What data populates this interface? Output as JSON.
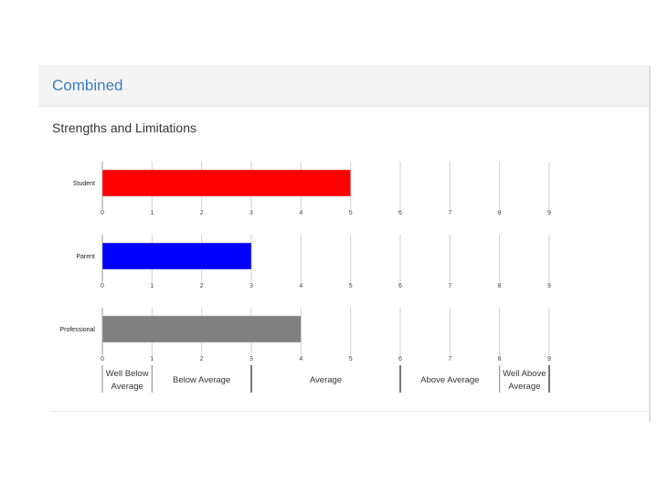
{
  "header": {
    "title": "Combined"
  },
  "section": {
    "title": "Strengths and Limitations"
  },
  "chart_data": {
    "type": "bar",
    "orientation": "horizontal",
    "categories": [
      "Student",
      "Parent",
      "Professional"
    ],
    "values": [
      5,
      3,
      4
    ],
    "colors": [
      "#ff0000",
      "#0000ff",
      "#808080"
    ],
    "xlim": [
      0,
      9
    ],
    "xticks": [
      "0",
      "1",
      "2",
      "3",
      "4",
      "5",
      "6",
      "7",
      "8",
      "9"
    ],
    "grid": true,
    "bands": [
      {
        "label": [
          "Well Below",
          "Average"
        ],
        "from": 0,
        "to": 1
      },
      {
        "label": [
          "Below Average"
        ],
        "from": 1,
        "to": 3
      },
      {
        "label": [
          "Average"
        ],
        "from": 3,
        "to": 6
      },
      {
        "label": [
          "Above Average"
        ],
        "from": 6,
        "to": 8
      },
      {
        "label": [
          "Well Above",
          "Average"
        ],
        "from": 8,
        "to": 9
      }
    ]
  }
}
